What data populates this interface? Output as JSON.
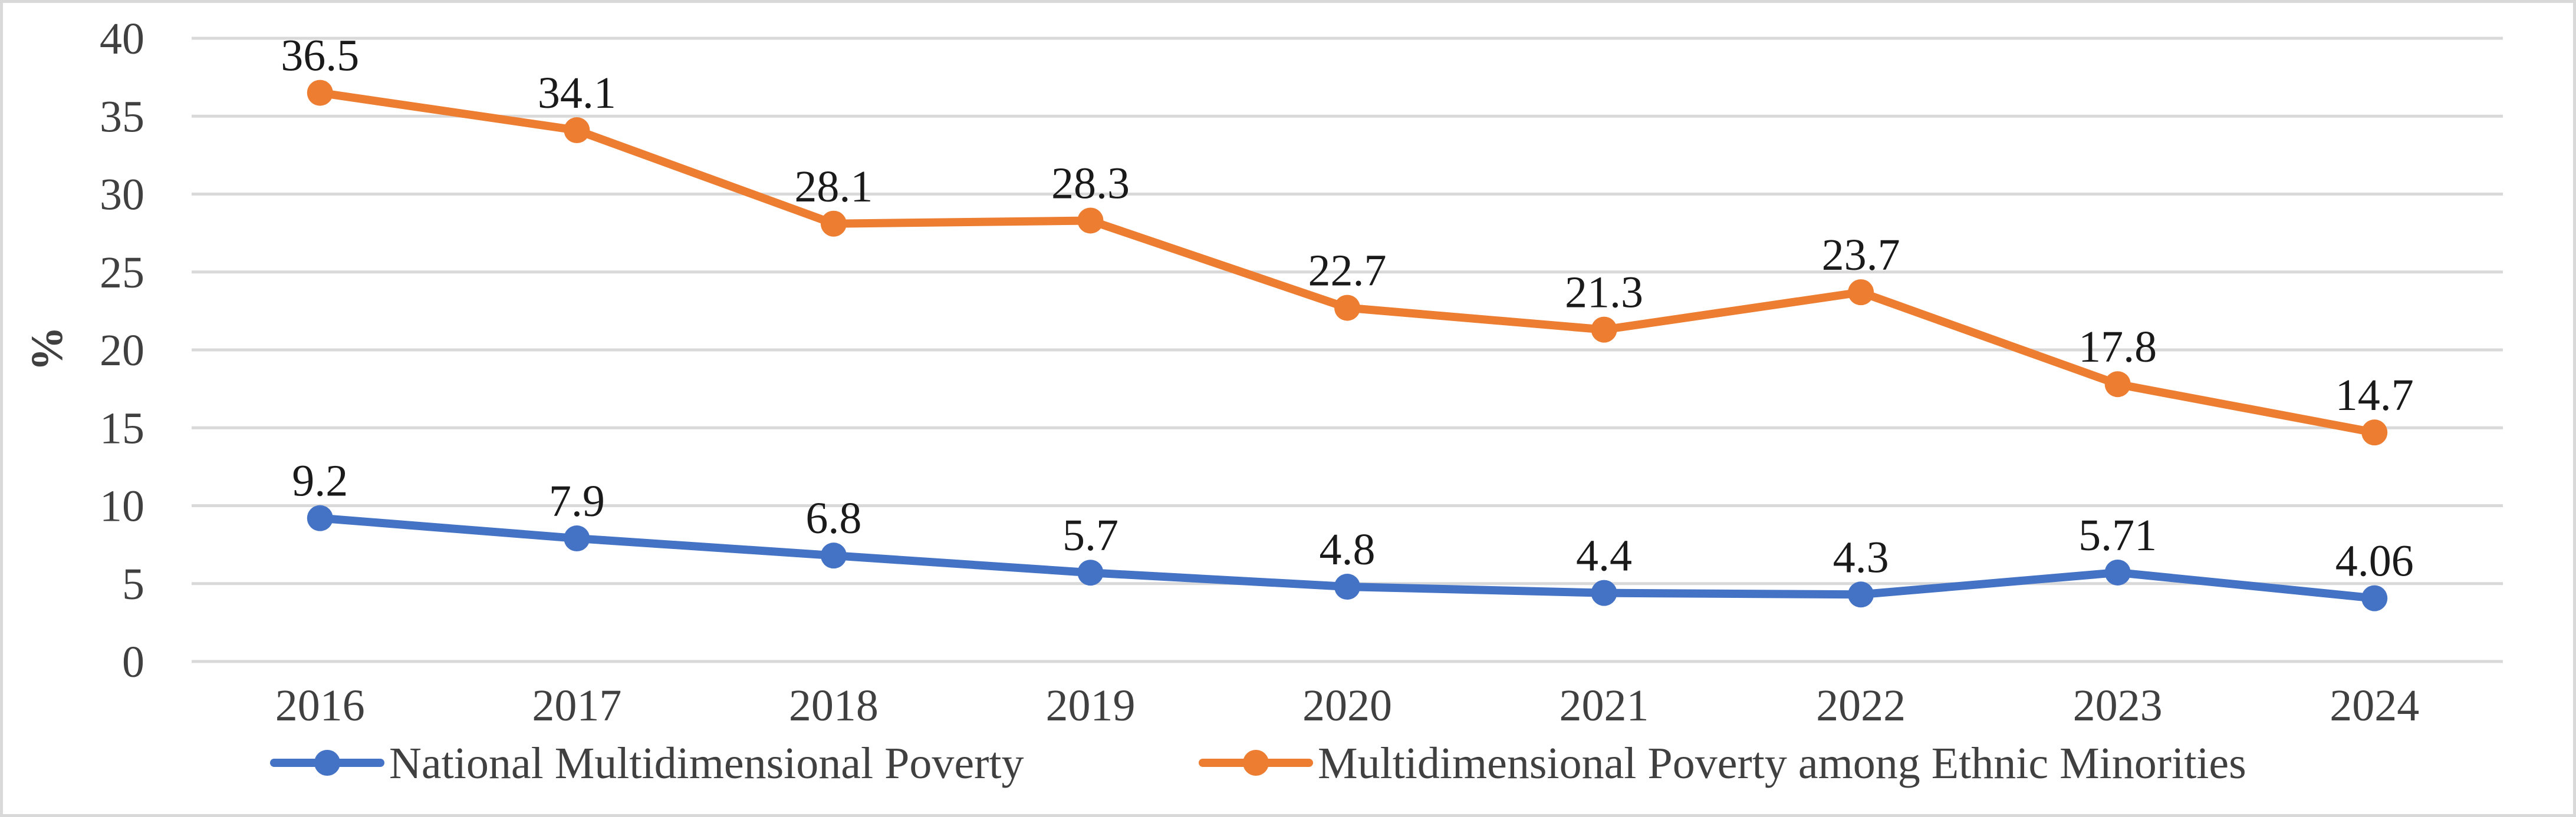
{
  "chart_data": {
    "type": "line",
    "title": "",
    "xlabel": "",
    "ylabel": "%",
    "categories": [
      "2016",
      "2017",
      "2018",
      "2019",
      "2020",
      "2021",
      "2022",
      "2023",
      "2024"
    ],
    "ylim": [
      0,
      40
    ],
    "yticks": [
      "0",
      "5",
      "10",
      "15",
      "20",
      "25",
      "30",
      "35",
      "40"
    ],
    "grid": true,
    "legend_position": "bottom",
    "series": [
      {
        "name": "National Multidimensional Poverty",
        "color": "#4472c4",
        "values": [
          9.2,
          7.9,
          6.8,
          5.7,
          4.8,
          4.4,
          4.3,
          5.71,
          4.06
        ],
        "labels": [
          "9.2",
          "7.9",
          "6.8",
          "5.7",
          "4.8",
          "4.4",
          "4.3",
          "5.71",
          "4.06"
        ]
      },
      {
        "name": "Multidimensional Poverty among Ethnic Minorities",
        "color": "#ed7d31",
        "values": [
          36.5,
          34.1,
          28.1,
          28.3,
          22.7,
          21.3,
          23.7,
          17.8,
          14.7
        ],
        "labels": [
          "36.5",
          "34.1",
          "28.1",
          "28.3",
          "22.7",
          "21.3",
          "23.7",
          "17.8",
          "14.7"
        ]
      }
    ]
  }
}
